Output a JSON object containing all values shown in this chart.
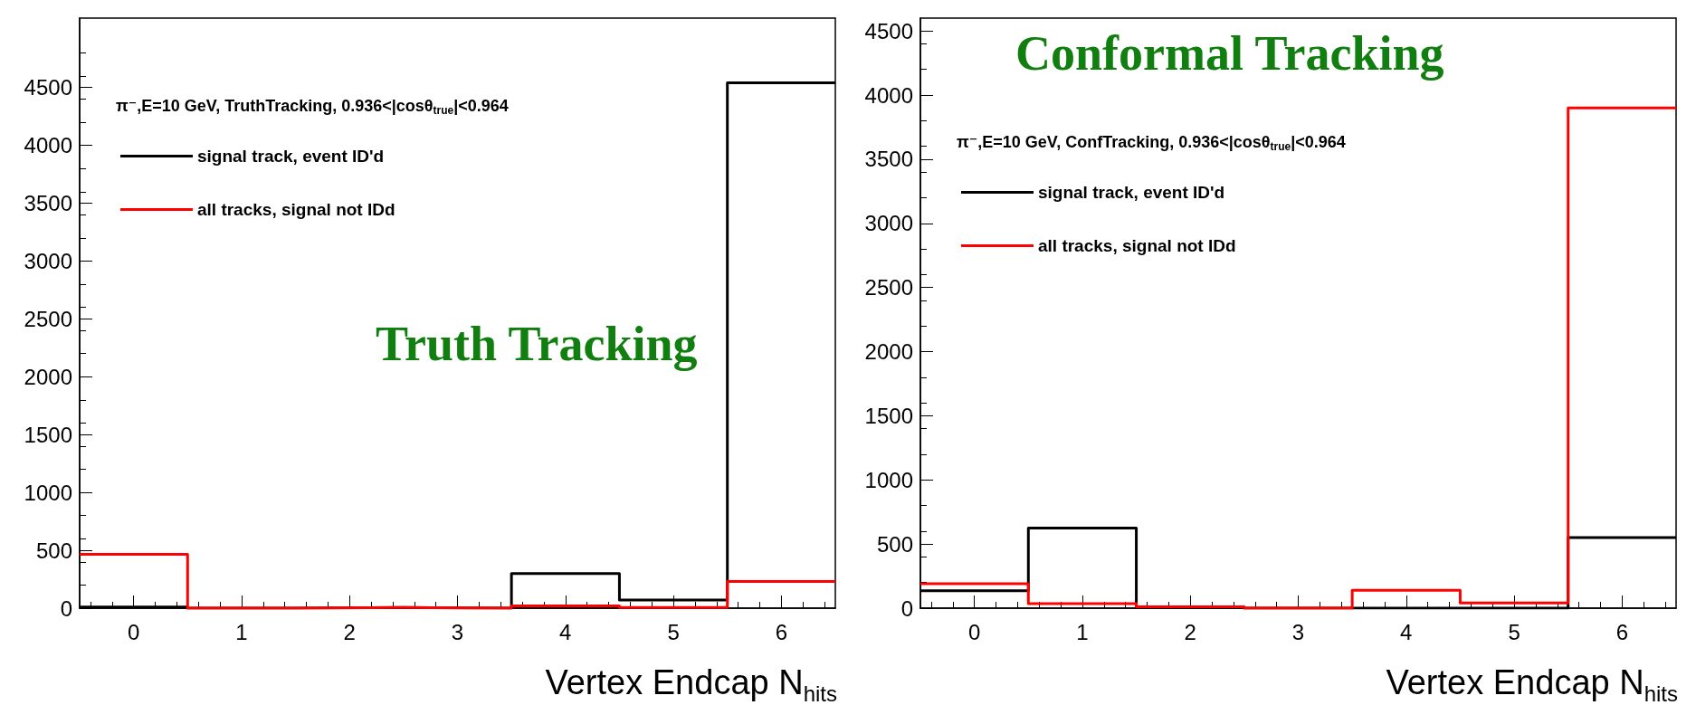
{
  "chart_data": [
    {
      "type": "histogram",
      "xlabel": "Vertex Endcap N$_{hits}$",
      "legend_title": "π⁻,E=10 GeV, TruthTracking, 0.936<|cosθ$_{true}$|<0.964",
      "annotations": [
        "Truth Tracking"
      ],
      "bins": [
        -0.5,
        0.5,
        1.5,
        2.5,
        3.5,
        4.5,
        5.5,
        6.5
      ],
      "xlim": [
        -0.5,
        6.5
      ],
      "xticks": [
        0,
        1,
        2,
        3,
        4,
        5,
        6
      ],
      "ylim": [
        0,
        5100
      ],
      "yticks": [
        0,
        500,
        1000,
        1500,
        2000,
        2500,
        3000,
        3500,
        4000,
        4500
      ],
      "legend": "top left",
      "grid": false,
      "series": [
        {
          "name": "signal track, event ID'd",
          "color": "#000000",
          "values": [
            10,
            0,
            5,
            0,
            300,
            70,
            4540
          ]
        },
        {
          "name": "all tracks, signal not IDd",
          "color": "#ff0000",
          "values": [
            465,
            0,
            5,
            0,
            20,
            5,
            230
          ]
        }
      ]
    },
    {
      "type": "histogram",
      "xlabel": "Vertex Endcap N$_{hits}$",
      "legend_title": "π⁻,E=10 GeV, ConfTracking, 0.936<|cosθ$_{true}$|<0.964",
      "annotations": [
        "Conformal Tracking"
      ],
      "bins": [
        -0.5,
        0.5,
        1.5,
        2.5,
        3.5,
        4.5,
        5.5,
        6.5
      ],
      "xlim": [
        -0.5,
        6.5
      ],
      "xticks": [
        0,
        1,
        2,
        3,
        4,
        5,
        6
      ],
      "ylim": [
        0,
        4600
      ],
      "yticks": [
        0,
        500,
        1000,
        1500,
        2000,
        2500,
        3000,
        3500,
        4000,
        4500
      ],
      "legend": "top left",
      "grid": false,
      "series": [
        {
          "name": "signal track, event ID'd",
          "color": "#000000",
          "values": [
            135,
            625,
            5,
            0,
            0,
            0,
            550
          ]
        },
        {
          "name": "all tracks, signal not IDd",
          "color": "#ff0000",
          "values": [
            190,
            35,
            10,
            0,
            140,
            40,
            3900
          ]
        }
      ]
    }
  ]
}
